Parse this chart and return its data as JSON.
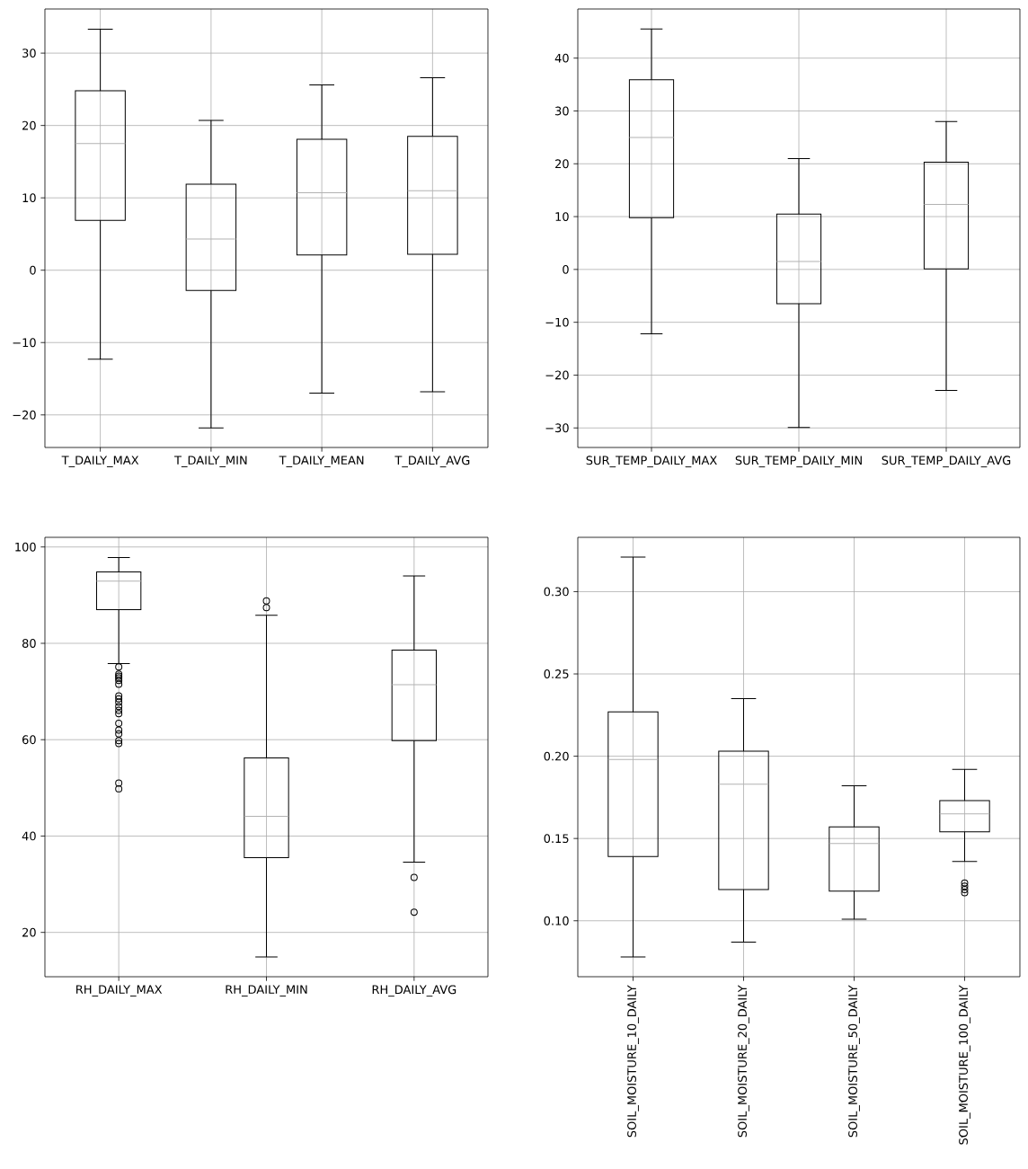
{
  "chart_data": [
    {
      "type": "box",
      "categories": [
        "T_DAILY_MAX",
        "T_DAILY_MIN",
        "T_DAILY_MEAN",
        "T_DAILY_AVG"
      ],
      "boxes": [
        {
          "low": -12.3,
          "q1": 6.9,
          "median": 17.5,
          "q3": 24.8,
          "high": 33.3
        },
        {
          "low": -21.8,
          "q1": -2.8,
          "median": 4.3,
          "q3": 11.9,
          "high": 20.7
        },
        {
          "low": -17.0,
          "q1": 2.1,
          "median": 10.7,
          "q3": 18.1,
          "high": 25.6
        },
        {
          "low": -16.8,
          "q1": 2.2,
          "median": 11.0,
          "q3": 18.5,
          "high": 26.6
        }
      ],
      "ylim": [
        -24.5,
        36.1
      ],
      "yticks": [
        {
          "value": -20,
          "label": "−20"
        },
        {
          "value": -10,
          "label": "−10"
        },
        0,
        10,
        20,
        30
      ],
      "grid": true
    },
    {
      "type": "box",
      "categories": [
        "SUR_TEMP_DAILY_MAX",
        "SUR_TEMP_DAILY_MIN",
        "SUR_TEMP_DAILY_AVG"
      ],
      "boxes": [
        {
          "low": -12.2,
          "q1": 9.8,
          "median": 25.0,
          "q3": 35.9,
          "high": 45.5
        },
        {
          "low": -29.9,
          "q1": -6.5,
          "median": 1.5,
          "q3": 10.5,
          "high": 21.0
        },
        {
          "low": -22.9,
          "q1": 0.1,
          "median": 12.3,
          "q3": 20.3,
          "high": 28.0
        }
      ],
      "ylim": [
        -33.7,
        49.3
      ],
      "yticks": [
        {
          "value": -30,
          "label": "−30"
        },
        {
          "value": -20,
          "label": "−20"
        },
        {
          "value": -10,
          "label": "−10"
        },
        0,
        10,
        20,
        30,
        40
      ],
      "grid": true
    },
    {
      "type": "box",
      "categories": [
        "RH_DAILY_MAX",
        "RH_DAILY_MIN",
        "RH_DAILY_AVG"
      ],
      "boxes": [
        {
          "low": 75.8,
          "q1": 87.0,
          "median": 92.9,
          "q3": 94.8,
          "high": 97.8,
          "outliers": [
            75.1,
            73.6,
            73.2,
            72.8,
            72.3,
            71.5,
            69.1,
            68.5,
            67.8,
            66.9,
            66.1,
            65.4,
            63.4,
            62.0,
            61.2,
            59.8,
            59.2,
            51.0,
            49.8
          ]
        },
        {
          "low": 14.9,
          "q1": 35.5,
          "median": 44.1,
          "q3": 56.2,
          "high": 85.8,
          "outliers": [
            87.4,
            88.8
          ]
        },
        {
          "low": 34.6,
          "q1": 59.8,
          "median": 71.4,
          "q3": 78.6,
          "high": 94.0,
          "outliers": [
            31.4,
            24.2
          ]
        }
      ],
      "ylim": [
        10.8,
        102
      ],
      "yticks": [
        20,
        40,
        60,
        80,
        100
      ],
      "grid": true
    },
    {
      "type": "box",
      "categories": [
        "SOIL_MOISTURE_10_DAILY",
        "SOIL_MOISTURE_20_DAILY",
        "SOIL_MOISTURE_50_DAILY",
        "SOIL_MOISTURE_100_DAILY"
      ],
      "boxes": [
        {
          "low": 0.078,
          "q1": 0.139,
          "median": 0.198,
          "q3": 0.227,
          "high": 0.321
        },
        {
          "low": 0.087,
          "q1": 0.119,
          "median": 0.183,
          "q3": 0.203,
          "high": 0.235
        },
        {
          "low": 0.101,
          "q1": 0.118,
          "median": 0.147,
          "q3": 0.157,
          "high": 0.182
        },
        {
          "low": 0.136,
          "q1": 0.154,
          "median": 0.165,
          "q3": 0.173,
          "high": 0.192,
          "outliers": [
            0.123,
            0.121,
            0.119,
            0.117
          ]
        }
      ],
      "ylim": [
        0.066,
        0.333
      ],
      "yticks": [
        {
          "value": 0.1,
          "label": "0.10"
        },
        {
          "value": 0.15,
          "label": "0.15"
        },
        {
          "value": 0.2,
          "label": "0.20"
        },
        {
          "value": 0.25,
          "label": "0.25"
        },
        {
          "value": 0.3,
          "label": "0.30"
        }
      ],
      "grid": true
    }
  ]
}
